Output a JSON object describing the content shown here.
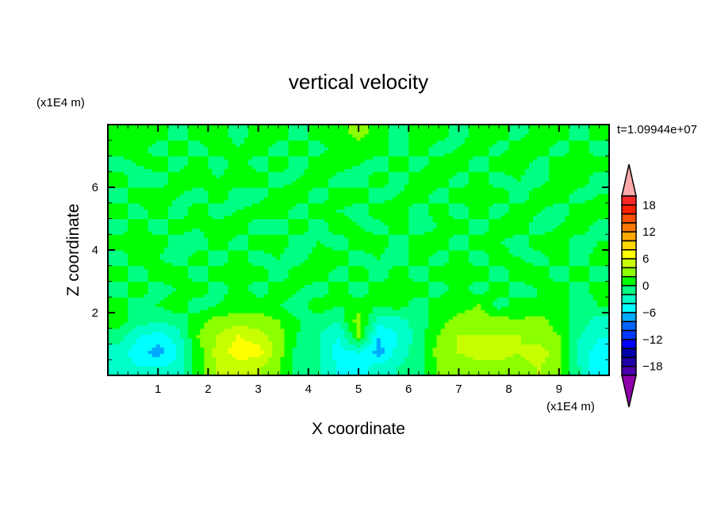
{
  "chart_data": {
    "type": "heatmap",
    "title": "vertical velocity",
    "xlabel": "X coordinate",
    "ylabel": "Z coordinate",
    "x_unit_label": "(x1E4 m)",
    "y_unit_label": "(x1E4 m)",
    "time_label": "t=1.09944e+07",
    "xlim": [
      0,
      10
    ],
    "ylim": [
      0,
      8
    ],
    "x_ticks": [
      1,
      2,
      3,
      4,
      5,
      6,
      7,
      8,
      9
    ],
    "y_ticks": [
      2,
      4,
      6
    ],
    "x_centers": [
      0.2,
      0.6,
      1.0,
      1.4,
      1.8,
      2.2,
      2.6,
      3.0,
      3.4,
      3.8,
      4.2,
      4.6,
      5.0,
      5.4,
      5.8,
      6.2,
      6.6,
      7.0,
      7.4,
      7.8,
      8.2,
      8.6,
      9.0,
      9.4,
      9.8
    ],
    "z_centers": [
      0.25,
      0.75,
      1.25,
      1.75,
      2.25,
      2.75,
      3.25,
      3.75,
      4.25,
      4.75,
      5.25,
      5.75,
      6.25,
      6.75,
      7.25,
      7.75
    ],
    "values": [
      [
        -3,
        -4,
        -4,
        -3,
        1,
        4,
        5,
        4,
        2,
        -1,
        -2,
        -4,
        -5,
        -3,
        -2,
        -1,
        2,
        3,
        3,
        3,
        3,
        4,
        2,
        -2,
        -6
      ],
      [
        -3,
        -5,
        -7,
        -4,
        1,
        5,
        7,
        7,
        3,
        -1,
        -2,
        -5,
        -4,
        -7,
        -3,
        -1,
        3,
        4,
        5,
        5,
        4,
        5,
        3,
        -3,
        -5
      ],
      [
        -1,
        -4,
        -5,
        -3,
        2,
        4,
        6,
        5,
        3,
        0,
        -2,
        -4,
        2,
        -6,
        -4,
        -1,
        2,
        4,
        4,
        4,
        4,
        3,
        2,
        -2,
        -4
      ],
      [
        1,
        -1,
        -2,
        -1,
        1,
        3,
        3,
        3,
        2,
        0,
        -1,
        -2,
        3,
        -3,
        -3,
        -1,
        1,
        3,
        3,
        3,
        2,
        3,
        1,
        -1,
        -3
      ],
      [
        1,
        -1,
        0,
        1,
        -1,
        0,
        1,
        1,
        0,
        -1,
        1,
        0,
        1,
        0,
        1,
        -1,
        1,
        1,
        2,
        -1,
        1,
        0,
        1,
        -1,
        0
      ],
      [
        -1,
        1,
        -1,
        0,
        1,
        -1,
        1,
        -1,
        1,
        0,
        -1,
        1,
        -1,
        1,
        0,
        1,
        -1,
        1,
        -1,
        1,
        -1,
        0,
        1,
        -1,
        1
      ],
      [
        1,
        -1,
        1,
        1,
        -1,
        1,
        0,
        1,
        -1,
        1,
        1,
        -1,
        1,
        -1,
        1,
        -1,
        1,
        0,
        1,
        -1,
        1,
        1,
        -1,
        1,
        -1
      ],
      [
        -1,
        1,
        0,
        -1,
        1,
        -1,
        1,
        -1,
        0,
        -1,
        1,
        1,
        -1,
        0,
        -1,
        1,
        -1,
        1,
        -1,
        1,
        0,
        -1,
        1,
        -1,
        1
      ],
      [
        1,
        0,
        1,
        -1,
        -1,
        1,
        -1,
        1,
        1,
        -1,
        0,
        -1,
        1,
        1,
        -1,
        1,
        1,
        -1,
        1,
        0,
        -1,
        1,
        1,
        -1,
        0
      ],
      [
        -1,
        1,
        -1,
        1,
        0,
        1,
        1,
        -1,
        -1,
        1,
        -1,
        1,
        0,
        -1,
        1,
        -1,
        0,
        1,
        -1,
        1,
        1,
        -1,
        0,
        1,
        -1
      ],
      [
        1,
        -1,
        1,
        -1,
        1,
        -1,
        0,
        1,
        1,
        -1,
        1,
        0,
        -1,
        1,
        1,
        -1,
        1,
        -1,
        1,
        -1,
        1,
        0,
        -1,
        1,
        1
      ],
      [
        -1,
        1,
        1,
        0,
        -1,
        1,
        -1,
        -1,
        1,
        1,
        -1,
        1,
        1,
        -1,
        0,
        1,
        -1,
        1,
        0,
        1,
        -1,
        1,
        1,
        -1,
        0
      ],
      [
        1,
        -1,
        -1,
        1,
        1,
        0,
        1,
        1,
        -1,
        0,
        1,
        -1,
        -1,
        1,
        -1,
        1,
        1,
        -1,
        1,
        -1,
        0,
        -1,
        1,
        1,
        -1
      ],
      [
        -1,
        0,
        1,
        -1,
        1,
        -1,
        1,
        -1,
        1,
        -1,
        1,
        1,
        0,
        -1,
        1,
        -1,
        1,
        1,
        -1,
        1,
        1,
        -1,
        1,
        0,
        1
      ],
      [
        1,
        1,
        -1,
        1,
        -1,
        1,
        0,
        1,
        -1,
        1,
        -1,
        1,
        1,
        1,
        -1,
        1,
        -1,
        0,
        1,
        -1,
        1,
        1,
        -1,
        1,
        -1
      ],
      [
        0,
        1,
        1,
        -1,
        1,
        1,
        -1,
        1,
        1,
        -1,
        1,
        1,
        3,
        1,
        -1,
        1,
        1,
        -1,
        1,
        1,
        -1,
        1,
        1,
        -1,
        1
      ]
    ],
    "colorbar": {
      "levels_min": -20,
      "levels_max": 20,
      "level_step": 2,
      "labels": [
        "18",
        "12",
        "6",
        "0",
        "-6",
        "-12",
        "-18"
      ],
      "colors_top_to_bottom": [
        "#FF2828",
        "#FF2000",
        "#FF5000",
        "#FF7800",
        "#FFA800",
        "#FFD800",
        "#FFFF00",
        "#C8FF00",
        "#8CFF00",
        "#00FF00",
        "#00FF82",
        "#00FFC8",
        "#00FFFF",
        "#00AAFF",
        "#0064FF",
        "#0038FF",
        "#0000FF",
        "#0000AA",
        "#1E00AA",
        "#4A00AA"
      ],
      "over_color": "#FFAAAA",
      "under_color": "#9000AA"
    }
  }
}
